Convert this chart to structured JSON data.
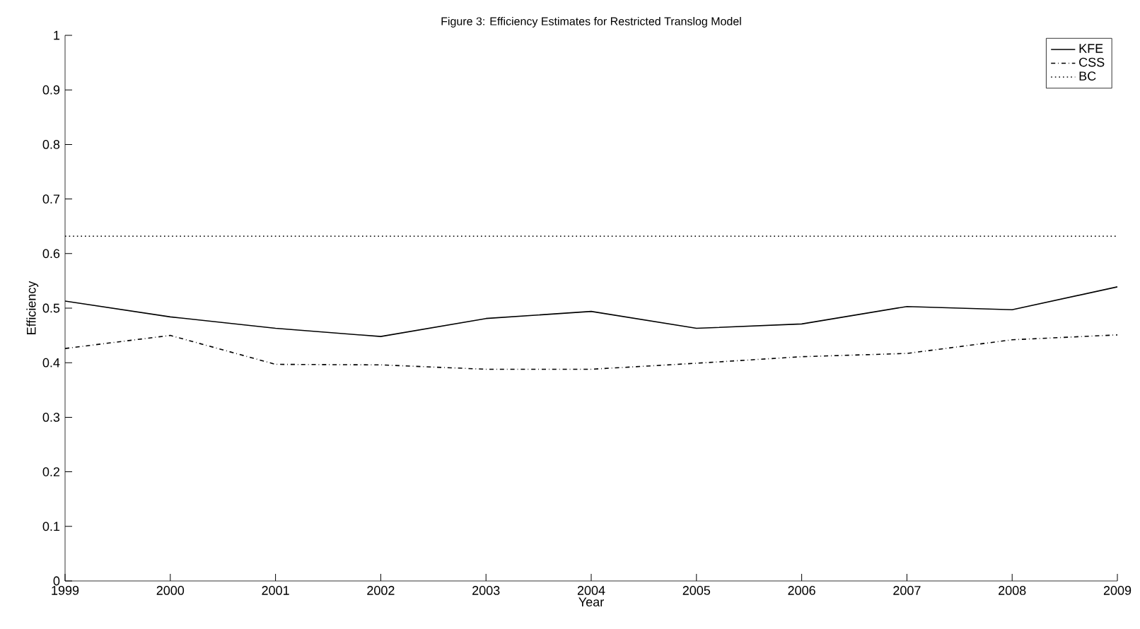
{
  "chart_data": {
    "type": "line",
    "title": "Figure 3: Efficiency Estimates for Restricted Translog Model",
    "xlabel": "Year",
    "ylabel": "Efficiency",
    "x": [
      1999,
      2000,
      2001,
      2002,
      2003,
      2004,
      2005,
      2006,
      2007,
      2008,
      2009
    ],
    "series": [
      {
        "name": "KFE",
        "color": "#000000",
        "line_style": "solid",
        "values": [
          0.513,
          0.484,
          0.463,
          0.448,
          0.481,
          0.494,
          0.463,
          0.471,
          0.503,
          0.497,
          0.539
        ]
      },
      {
        "name": "CSS",
        "color": "#000000",
        "line_style": "dashdot",
        "values": [
          0.426,
          0.45,
          0.397,
          0.396,
          0.388,
          0.388,
          0.399,
          0.411,
          0.417,
          0.442,
          0.451
        ]
      },
      {
        "name": "BC",
        "color": "#000000",
        "line_style": "dotted",
        "values": [
          0.632,
          0.632,
          0.632,
          0.632,
          0.632,
          0.632,
          0.632,
          0.632,
          0.632,
          0.632,
          0.632
        ]
      }
    ],
    "xlim": [
      1999,
      2009
    ],
    "ylim": [
      0,
      1
    ],
    "xticks": [
      1999,
      2000,
      2001,
      2002,
      2003,
      2004,
      2005,
      2006,
      2007,
      2008,
      2009
    ],
    "yticks": [
      0,
      0.1,
      0.2,
      0.3,
      0.4,
      0.5,
      0.6,
      0.7,
      0.8,
      0.9,
      1
    ],
    "grid": false,
    "legend": "top right",
    "marker": "none"
  }
}
